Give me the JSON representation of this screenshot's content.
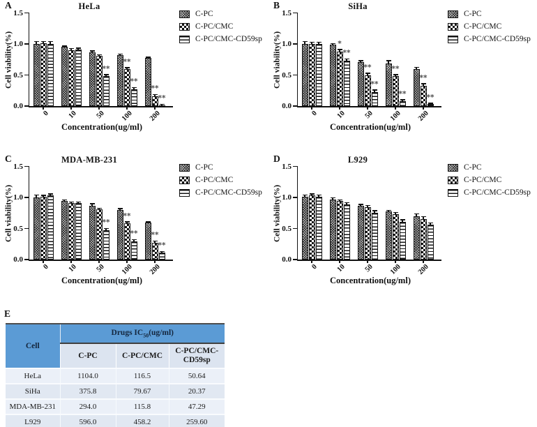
{
  "figure_title": "Cell viability bar charts with IC50 table",
  "colors": {
    "table_header_blue": "#5B9BD5",
    "table_subheader": "#DCE4F0",
    "table_row_light": "#EBF0F8",
    "table_row_dark": "#E1E8F2",
    "bar_outline": "#111111",
    "significance_text": "#4f4f4f"
  },
  "chart_data": [
    {
      "type": "bar",
      "panel": "A",
      "title": "HeLa",
      "xlabel": "Concentration(ug/ml)",
      "ylabel": "Cell viability(%)",
      "ylim": [
        0,
        1.5
      ],
      "yticks": [
        "0.0",
        "0.5",
        "1.0",
        "1.5"
      ],
      "categories": [
        "0",
        "10",
        "50",
        "100",
        "200"
      ],
      "legend_position": "right",
      "grid": false,
      "series": [
        {
          "name": "C-PC",
          "pattern": "crosshatch",
          "values": [
            1.0,
            0.95,
            0.87,
            0.82,
            0.77
          ],
          "err": [
            0.03,
            0.01,
            0.01,
            0.01,
            0.01
          ],
          "sig": [
            "",
            "",
            "",
            "",
            ""
          ]
        },
        {
          "name": "C-PC/CMC",
          "pattern": "checker",
          "values": [
            1.01,
            0.9,
            0.81,
            0.59,
            0.16
          ],
          "err": [
            0.02,
            0.02,
            0.01,
            0.02,
            0.015
          ],
          "sig": [
            "",
            "",
            "",
            "**",
            "**"
          ]
        },
        {
          "name": "C-PC/CMC-CD59sp",
          "pattern": "hlines",
          "values": [
            1.0,
            0.91,
            0.48,
            0.27,
            0.01
          ],
          "err": [
            0.03,
            0.015,
            0.015,
            0.02,
            0.008
          ],
          "sig": [
            "",
            "",
            "**",
            "**",
            "**"
          ]
        }
      ]
    },
    {
      "type": "bar",
      "panel": "B",
      "title": "SiHa",
      "xlabel": "Concentration(ug/ml)",
      "ylabel": "Cell viability(%)",
      "ylim": [
        0,
        1.5
      ],
      "yticks": [
        "0.0",
        "0.5",
        "1.0",
        "1.5"
      ],
      "categories": [
        "0",
        "10",
        "50",
        "100",
        "200"
      ],
      "legend_position": "right",
      "grid": false,
      "series": [
        {
          "name": "C-PC",
          "pattern": "crosshatch",
          "values": [
            1.0,
            0.99,
            0.71,
            0.69,
            0.6
          ],
          "err": [
            0.03,
            0.01,
            0.01,
            0.03,
            0.015
          ],
          "sig": [
            "",
            "",
            "",
            "",
            ""
          ]
        },
        {
          "name": "C-PC/CMC",
          "pattern": "checker",
          "values": [
            1.0,
            0.88,
            0.49,
            0.48,
            0.33
          ],
          "err": [
            0.02,
            0.02,
            0.03,
            0.02,
            0.02
          ],
          "sig": [
            "",
            "*",
            "**",
            "**",
            "**"
          ]
        },
        {
          "name": "C-PC/CMC-CD59sp",
          "pattern": "hlines",
          "values": [
            1.0,
            0.73,
            0.23,
            0.08,
            0.03
          ],
          "err": [
            0.02,
            0.02,
            0.02,
            0.01,
            0.008
          ],
          "sig": [
            "",
            "**",
            "**",
            "**",
            "**"
          ]
        }
      ]
    },
    {
      "type": "bar",
      "panel": "C",
      "title": "MDA-MB-231",
      "xlabel": "Concentration(ug/ml)",
      "ylabel": "Cell viability(%)",
      "ylim": [
        0,
        1.5
      ],
      "yticks": [
        "0.0",
        "0.5",
        "1.0",
        "1.5"
      ],
      "categories": [
        "0",
        "10",
        "50",
        "100",
        "200"
      ],
      "legend_position": "right",
      "grid": false,
      "series": [
        {
          "name": "C-PC",
          "pattern": "crosshatch",
          "values": [
            1.0,
            0.94,
            0.87,
            0.8,
            0.59
          ],
          "err": [
            0.03,
            0.01,
            0.02,
            0.01,
            0.01
          ],
          "sig": [
            "",
            "",
            "",
            "",
            ""
          ]
        },
        {
          "name": "C-PC/CMC",
          "pattern": "checker",
          "values": [
            1.01,
            0.91,
            0.81,
            0.58,
            0.27
          ],
          "err": [
            0.015,
            0.01,
            0.01,
            0.02,
            0.02
          ],
          "sig": [
            "",
            "",
            "",
            "**",
            "**"
          ]
        },
        {
          "name": "C-PC/CMC-CD59sp",
          "pattern": "hlines",
          "values": [
            1.03,
            0.91,
            0.47,
            0.29,
            0.11
          ],
          "err": [
            0.02,
            0.01,
            0.02,
            0.02,
            0.01
          ],
          "sig": [
            "",
            "",
            "**",
            "**",
            "**"
          ]
        }
      ]
    },
    {
      "type": "bar",
      "panel": "D",
      "title": "L929",
      "xlabel": "Concentration(ug/ml)",
      "ylabel": "Cell viability(%)",
      "ylim": [
        0,
        1.5
      ],
      "yticks": [
        "0.0",
        "0.5",
        "1.0",
        "1.5"
      ],
      "categories": [
        "0",
        "10",
        "50",
        "100",
        "200"
      ],
      "legend_position": "right",
      "grid": false,
      "series": [
        {
          "name": "C-PC",
          "pattern": "crosshatch",
          "values": [
            1.01,
            0.97,
            0.86,
            0.77,
            0.7
          ],
          "err": [
            0.02,
            0.015,
            0.02,
            0.015,
            0.03
          ],
          "sig": [
            "",
            "",
            "",
            "",
            ""
          ]
        },
        {
          "name": "C-PC/CMC",
          "pattern": "checker",
          "values": [
            1.03,
            0.94,
            0.84,
            0.73,
            0.65
          ],
          "err": [
            0.02,
            0.015,
            0.02,
            0.02,
            0.03
          ],
          "sig": [
            "",
            "",
            "",
            "",
            ""
          ]
        },
        {
          "name": "C-PC/CMC-CD59sp",
          "pattern": "hlines",
          "values": [
            1.01,
            0.89,
            0.75,
            0.61,
            0.56
          ],
          "err": [
            0.02,
            0.015,
            0.03,
            0.02,
            0.02
          ],
          "sig": [
            "",
            "",
            "",
            "",
            ""
          ]
        }
      ]
    }
  ],
  "table": {
    "panel_label": "E",
    "header": {
      "cell": "Cell",
      "drugs_prefix": "Drugs  IC",
      "drugs_sub": "50",
      "drugs_suffix": "(ug/ml)",
      "columns": [
        "C-PC",
        "C-PC/CMC",
        "C-PC/CMC-CD59sp"
      ]
    },
    "rows": [
      {
        "cell": "HeLa",
        "values": [
          "1104.0",
          "116.5",
          "50.64"
        ]
      },
      {
        "cell": "SiHa",
        "values": [
          "375.8",
          "79.67",
          "20.37"
        ]
      },
      {
        "cell": "MDA-MB-231",
        "values": [
          "294.0",
          "115.8",
          "47.29"
        ]
      },
      {
        "cell": "L929",
        "values": [
          "596.0",
          "458.2",
          "259.60"
        ]
      }
    ]
  }
}
